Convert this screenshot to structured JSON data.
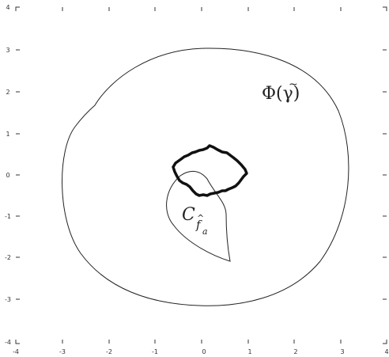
{
  "axes": {
    "x_ticks": [
      "-4",
      "-3",
      "-2",
      "-1",
      "0",
      "1",
      "2",
      "3",
      "4"
    ],
    "y_ticks": [
      "4",
      "3",
      "2",
      "1",
      "0",
      "-1",
      "-2",
      "-3",
      "-4"
    ],
    "xlim": [
      -4,
      4
    ],
    "ylim": [
      -4,
      4
    ]
  },
  "labels": {
    "phi_curve": {
      "main": "Φ(",
      "inner": "γ",
      "accent": "~",
      "close": ")"
    },
    "c_curve": {
      "main": "C",
      "sub_letter": "f",
      "sub_accent": "^",
      "sub_sub": "a"
    }
  },
  "colors": {
    "ink": "#222222",
    "axis": "#333333",
    "background": "#ffffff"
  }
}
